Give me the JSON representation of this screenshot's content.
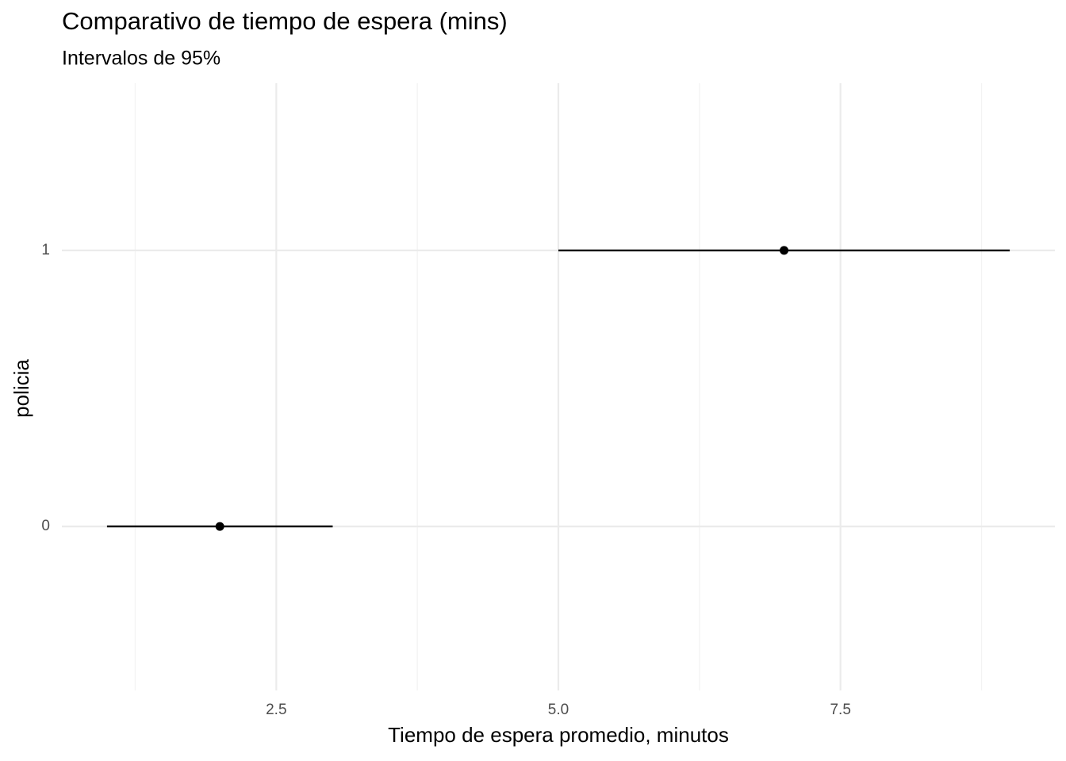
{
  "chart_data": {
    "type": "pointrange",
    "title": "Comparativo de tiempo de espera (mins)",
    "subtitle": "Intervalos de 95%",
    "x_label": "Tiempo de espera promedio, minutos",
    "y_label": "policia",
    "categories": [
      "0",
      "1"
    ],
    "values": [
      2.0,
      7.0
    ],
    "lower": [
      1.0,
      5.0
    ],
    "upper": [
      3.0,
      9.0
    ],
    "color": "#000000",
    "xlim": [
      0.6,
      9.4
    ],
    "xticks": [
      2.5,
      {
        "value": 5,
        "label": "5.0"
      },
      7.5
    ],
    "x_minor_ticks": [
      1.25,
      3.75,
      6.25,
      8.75
    ],
    "grid": true
  }
}
